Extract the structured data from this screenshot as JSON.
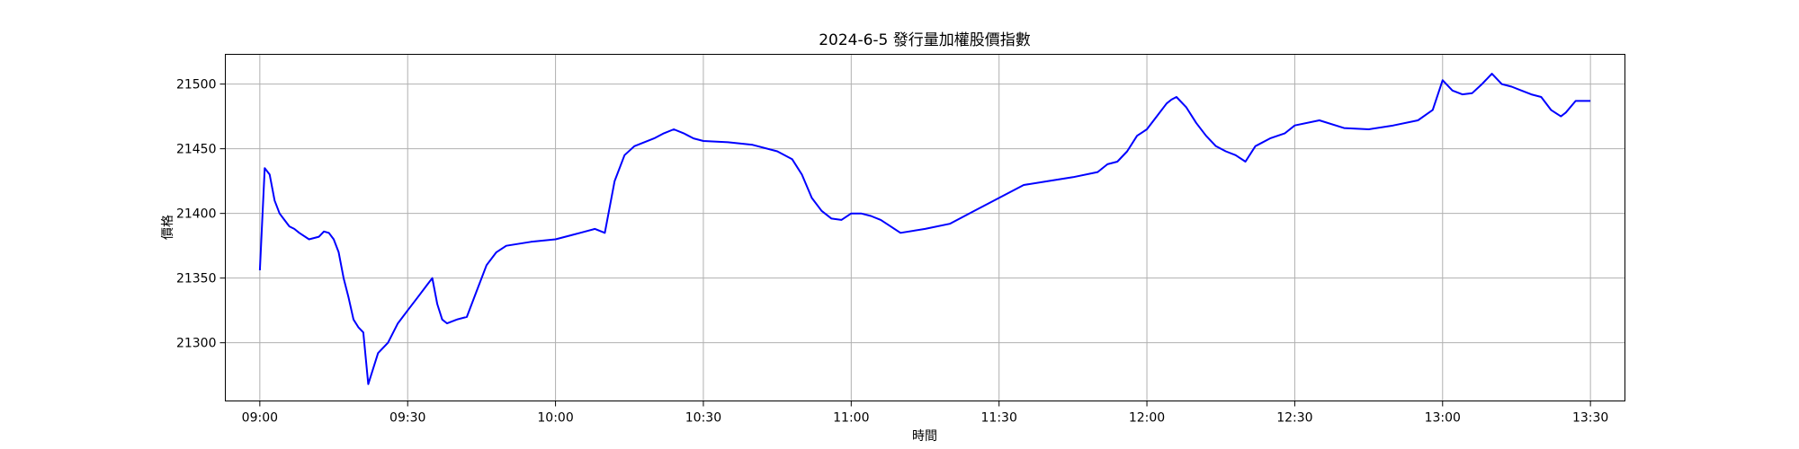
{
  "chart_data": {
    "type": "line",
    "title": "2024-6-5 發行量加權股價指數",
    "xlabel": "時間",
    "ylabel": "價格",
    "x_ticks": [
      "09:00",
      "09:30",
      "10:00",
      "10:30",
      "11:00",
      "11:30",
      "12:00",
      "12:30",
      "13:00",
      "13:30"
    ],
    "y_ticks": [
      21300,
      21350,
      21400,
      21450,
      21500
    ],
    "xlim": [
      "08:53",
      "13:37"
    ],
    "ylim": [
      21255,
      21523
    ],
    "grid": true,
    "series": [
      {
        "color": "#0000ff",
        "x": [
          "09:00",
          "09:01",
          "09:02",
          "09:03",
          "09:04",
          "09:05",
          "09:06",
          "09:07",
          "09:08",
          "09:10",
          "09:12",
          "09:13",
          "09:14",
          "09:15",
          "09:16",
          "09:17",
          "09:18",
          "09:19",
          "09:20",
          "09:21",
          "09:22",
          "09:24",
          "09:26",
          "09:28",
          "09:30",
          "09:32",
          "09:34",
          "09:35",
          "09:36",
          "09:37",
          "09:38",
          "09:40",
          "09:42",
          "09:44",
          "09:46",
          "09:48",
          "09:50",
          "09:55",
          "10:00",
          "10:05",
          "10:08",
          "10:10",
          "10:12",
          "10:14",
          "10:16",
          "10:18",
          "10:20",
          "10:22",
          "10:24",
          "10:26",
          "10:28",
          "10:30",
          "10:35",
          "10:40",
          "10:45",
          "10:48",
          "10:50",
          "10:52",
          "10:54",
          "10:56",
          "10:58",
          "11:00",
          "11:02",
          "11:04",
          "11:06",
          "11:08",
          "11:10",
          "11:15",
          "11:20",
          "11:25",
          "11:30",
          "11:35",
          "11:40",
          "11:45",
          "11:50",
          "11:52",
          "11:54",
          "11:56",
          "11:58",
          "12:00",
          "12:02",
          "12:04",
          "12:05",
          "12:06",
          "12:08",
          "12:10",
          "12:12",
          "12:14",
          "12:16",
          "12:18",
          "12:20",
          "12:22",
          "12:25",
          "12:28",
          "12:30",
          "12:35",
          "12:40",
          "12:45",
          "12:50",
          "12:55",
          "12:58",
          "13:00",
          "13:02",
          "13:04",
          "13:06",
          "13:08",
          "13:10",
          "13:12",
          "13:14",
          "13:16",
          "13:18",
          "13:20",
          "13:22",
          "13:24",
          "13:25",
          "13:27",
          "13:30"
        ],
        "values": [
          21356,
          21435,
          21430,
          21410,
          21400,
          21395,
          21390,
          21388,
          21385,
          21380,
          21382,
          21386,
          21385,
          21380,
          21370,
          21350,
          21335,
          21318,
          21312,
          21308,
          21268,
          21292,
          21300,
          21315,
          21325,
          21335,
          21345,
          21350,
          21330,
          21318,
          21315,
          21318,
          21320,
          21340,
          21360,
          21370,
          21375,
          21378,
          21380,
          21385,
          21388,
          21385,
          21425,
          21445,
          21452,
          21455,
          21458,
          21462,
          21465,
          21462,
          21458,
          21456,
          21455,
          21453,
          21448,
          21442,
          21430,
          21412,
          21402,
          21396,
          21395,
          21400,
          21400,
          21398,
          21395,
          21390,
          21385,
          21388,
          21392,
          21402,
          21412,
          21422,
          21425,
          21428,
          21432,
          21438,
          21440,
          21448,
          21460,
          21465,
          21475,
          21485,
          21488,
          21490,
          21482,
          21470,
          21460,
          21452,
          21448,
          21445,
          21440,
          21452,
          21458,
          21462,
          21468,
          21472,
          21466,
          21465,
          21468,
          21472,
          21480,
          21503,
          21495,
          21492,
          21493,
          21500,
          21508,
          21500,
          21498,
          21495,
          21492,
          21490,
          21480,
          21475,
          21478,
          21487,
          21487
        ]
      }
    ]
  }
}
